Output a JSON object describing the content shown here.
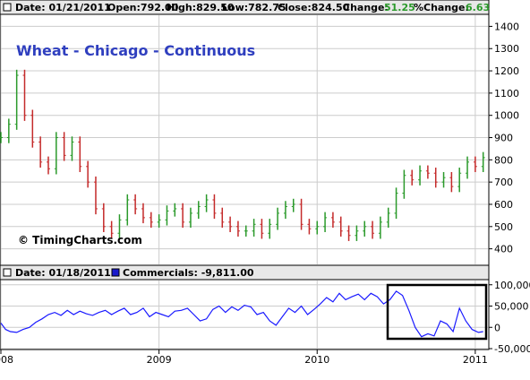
{
  "header": {
    "date": "Date: 01/21/2011",
    "open": "Open:792.00",
    "high": "High:829.50",
    "low": "Low:782.75",
    "close": "Close:824.50",
    "change_label": "Change:",
    "change_value": "51.25",
    "pct_label": "%Change:",
    "pct_value": "6.63"
  },
  "lower_header": {
    "date": "Date: 01/18/2011",
    "series_label": "Commercials: -9,811.00"
  },
  "watermark": "© TimingCharts.com",
  "colors": {
    "up": "#2b9a2b",
    "down": "#c42a2a",
    "line": "#1a1aff",
    "title": "#2f3fbf",
    "grid": "#cccccc"
  },
  "chart_data": [
    {
      "type": "bar",
      "title": "Wheat - Chicago - Continuous",
      "ylim": [
        330,
        1450
      ],
      "y_ticks": [
        "1400",
        "1300",
        "1200",
        "1100",
        "1000",
        "900",
        "800",
        "700",
        "600",
        "500",
        "400"
      ],
      "x_ticks": [
        "2008",
        "2009",
        "2010",
        "2011"
      ],
      "xlim": [
        2008.0,
        2011.08
      ],
      "series": [
        {
          "x": [
            2008.0,
            2008.05,
            2008.1,
            2008.15,
            2008.2,
            2008.25,
            2008.3,
            2008.35,
            2008.4,
            2008.45,
            2008.5,
            2008.55,
            2008.6,
            2008.65,
            2008.7,
            2008.75,
            2008.8,
            2008.85,
            2008.9,
            2008.95,
            2009.0,
            2009.05,
            2009.1,
            2009.15,
            2009.2,
            2009.25,
            2009.3,
            2009.35,
            2009.4,
            2009.45,
            2009.5,
            2009.55,
            2009.6,
            2009.65,
            2009.7,
            2009.75,
            2009.8,
            2009.85,
            2009.9,
            2009.95,
            2010.0,
            2010.05,
            2010.1,
            2010.15,
            2010.2,
            2010.25,
            2010.3,
            2010.35,
            2010.4,
            2010.45,
            2010.5,
            2010.55,
            2010.6,
            2010.65,
            2010.7,
            2010.75,
            2010.8,
            2010.85,
            2010.9,
            2010.95,
            2011.0,
            2011.05
          ],
          "values": [
            900,
            960,
            1180,
            1000,
            880,
            790,
            760,
            900,
            820,
            880,
            770,
            700,
            580,
            500,
            470,
            530,
            620,
            580,
            540,
            520,
            530,
            570,
            580,
            520,
            560,
            590,
            620,
            560,
            520,
            500,
            480,
            480,
            510,
            470,
            510,
            560,
            590,
            600,
            510,
            490,
            500,
            540,
            520,
            480,
            460,
            480,
            500,
            470,
            520,
            560,
            650,
            730,
            710,
            750,
            740,
            700,
            720,
            680,
            740,
            790,
            770,
            810
          ]
        }
      ]
    },
    {
      "type": "line",
      "title": "",
      "ylim": [
        -50000,
        110000
      ],
      "y_ticks": [
        "100,000",
        "50,000",
        "0",
        "-50,000"
      ],
      "x_ticks": [
        "2008",
        "2009",
        "2010",
        "2011"
      ],
      "xlim": [
        2008.0,
        2011.08
      ],
      "series": [
        {
          "name": "Commercials",
          "x": [
            2008.0,
            2008.03,
            2008.06,
            2008.1,
            2008.14,
            2008.18,
            2008.22,
            2008.26,
            2008.3,
            2008.34,
            2008.38,
            2008.42,
            2008.46,
            2008.5,
            2008.54,
            2008.58,
            2008.62,
            2008.66,
            2008.7,
            2008.74,
            2008.78,
            2008.82,
            2008.86,
            2008.9,
            2008.94,
            2008.98,
            2009.02,
            2009.06,
            2009.1,
            2009.14,
            2009.18,
            2009.22,
            2009.26,
            2009.3,
            2009.34,
            2009.38,
            2009.42,
            2009.46,
            2009.5,
            2009.54,
            2009.58,
            2009.62,
            2009.66,
            2009.7,
            2009.74,
            2009.78,
            2009.82,
            2009.86,
            2009.9,
            2009.94,
            2009.98,
            2010.02,
            2010.06,
            2010.1,
            2010.14,
            2010.18,
            2010.22,
            2010.26,
            2010.3,
            2010.34,
            2010.38,
            2010.42,
            2010.46,
            2010.5,
            2010.54,
            2010.58,
            2010.62,
            2010.66,
            2010.7,
            2010.74,
            2010.78,
            2010.82,
            2010.86,
            2010.9,
            2010.94,
            2010.98,
            2011.02,
            2011.05
          ],
          "values": [
            10000,
            -5000,
            -10000,
            -12000,
            -5000,
            0,
            12000,
            20000,
            30000,
            35000,
            28000,
            40000,
            30000,
            38000,
            32000,
            28000,
            35000,
            40000,
            30000,
            38000,
            45000,
            30000,
            35000,
            45000,
            25000,
            35000,
            30000,
            25000,
            38000,
            40000,
            45000,
            30000,
            15000,
            20000,
            42000,
            50000,
            35000,
            48000,
            40000,
            52000,
            48000,
            30000,
            35000,
            15000,
            5000,
            25000,
            45000,
            35000,
            50000,
            30000,
            42000,
            55000,
            70000,
            60000,
            80000,
            65000,
            72000,
            78000,
            65000,
            80000,
            72000,
            55000,
            65000,
            85000,
            75000,
            40000,
            0,
            -22000,
            -15000,
            -20000,
            15000,
            8000,
            -10000,
            45000,
            15000,
            -5000,
            -12000,
            -10000
          ]
        }
      ]
    }
  ]
}
